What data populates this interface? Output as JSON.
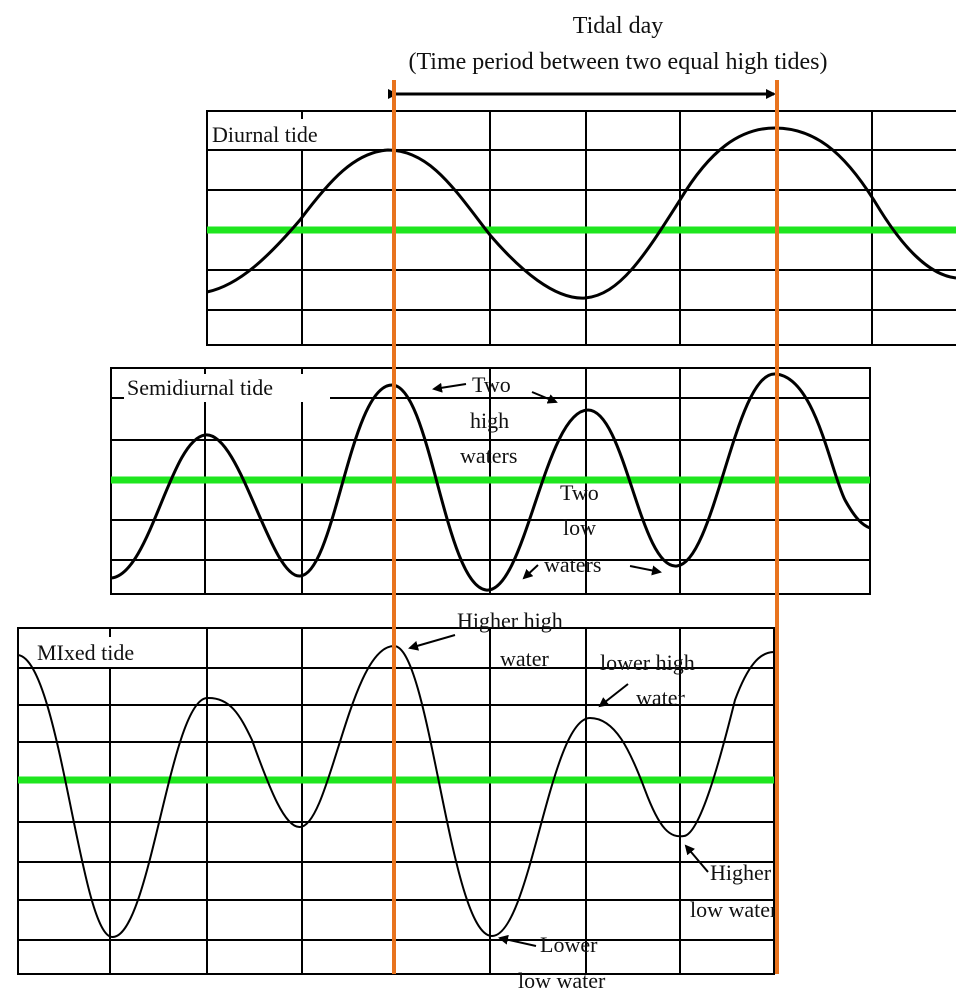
{
  "title": {
    "line1": "Tidal day",
    "line2": "(Time period between two equal high tides)"
  },
  "panels": {
    "diurnal": {
      "label": "Diurnal tide"
    },
    "semidiurnal": {
      "label": "Semidiurnal tide",
      "annotations": {
        "two_high_1": "Two",
        "two_high_2": "high",
        "two_high_3": "waters",
        "two_low_1": "Two",
        "two_low_2": "low",
        "two_low_3": "waters"
      }
    },
    "mixed": {
      "label": "MIxed tide",
      "annotations": {
        "higher_high_1": "Higher high",
        "higher_high_2": "water",
        "lower_high_1": "lower high",
        "lower_high_2": "water",
        "higher_low_1": "Higher",
        "higher_low_2": "low water",
        "lower_low_1": "Lower",
        "lower_low_2": "low water"
      }
    }
  },
  "colors": {
    "mean_line": "#1ee61e",
    "marker": "#e8731e",
    "curve": "#000000",
    "grid": "#000000"
  }
}
